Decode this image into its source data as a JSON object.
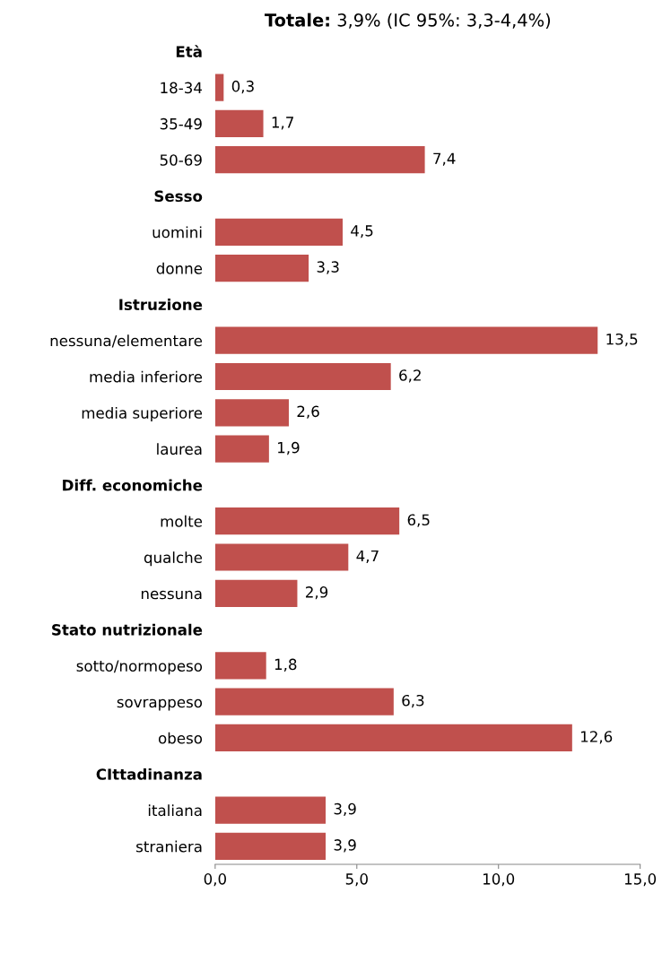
{
  "chart_data": {
    "type": "bar",
    "orientation": "horizontal",
    "title": "Totale: 3,9% (IC 95%: 3,3-4,4%)",
    "categories": [
      "Età",
      "18-34",
      "35-49",
      "50-69",
      "Sesso",
      "uomini",
      "donne",
      "Istruzione",
      "nessuna/elementare",
      "media inferiore",
      "media superiore",
      "laurea",
      "Diff. economiche",
      "molte",
      "qualche",
      "nessuna",
      "Stato nutrizionale",
      "sotto/normopeso",
      "sovrappeso",
      "obeso",
      "CIttadinanza",
      "italiana",
      "straniera"
    ],
    "values": [
      null,
      0.3,
      1.7,
      7.4,
      null,
      4.5,
      3.3,
      null,
      13.5,
      6.2,
      2.6,
      1.9,
      null,
      6.5,
      4.7,
      2.9,
      null,
      1.8,
      6.3,
      12.6,
      null,
      3.9,
      3.9
    ],
    "value_labels": [
      null,
      "0,3",
      "1,7",
      "7,4",
      null,
      "4,5",
      "3,3",
      null,
      "13,5",
      "6,2",
      "2,6",
      "1,9",
      null,
      "6,5",
      "4,7",
      "2,9",
      null,
      "1,8",
      "6,3",
      "12,6",
      null,
      "3,9",
      "3,9"
    ],
    "color": "#c0504d",
    "xlim": [
      0,
      15
    ],
    "xticks": [
      {
        "value": 0,
        "label": "0,0"
      },
      {
        "value": 5,
        "label": "5,0"
      },
      {
        "value": 10,
        "label": "10,0"
      },
      {
        "value": 15,
        "label": "15,0"
      }
    ],
    "grid": false
  }
}
